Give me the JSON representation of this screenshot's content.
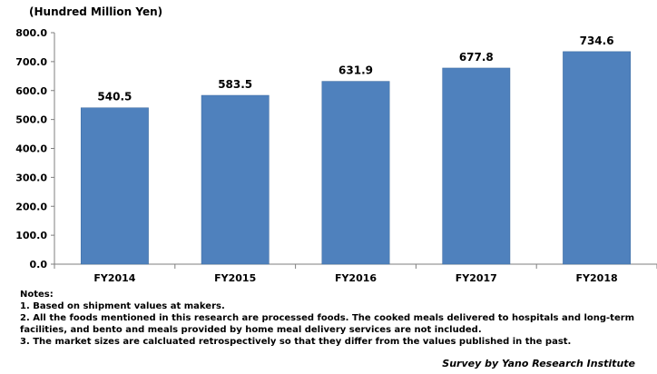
{
  "chart_data": {
    "type": "bar",
    "unit_label": "(Hundred Million Yen)",
    "categories": [
      "FY2014",
      "FY2015",
      "FY2016",
      "FY2017",
      "FY2018"
    ],
    "values": [
      540.5,
      583.5,
      631.9,
      677.8,
      734.6
    ],
    "value_labels": [
      "540.5",
      "583.5",
      "631.9",
      "677.8",
      "734.6"
    ],
    "ylim": [
      0,
      800
    ],
    "yticks": [
      0,
      100,
      200,
      300,
      400,
      500,
      600,
      700,
      800
    ],
    "ytick_labels": [
      "0.0",
      "100.0",
      "200.0",
      "300.0",
      "400.0",
      "500.0",
      "600.0",
      "700.0",
      "800.0"
    ],
    "grid": false,
    "bar_color": "#4f81bd"
  },
  "notes": {
    "heading": "Notes:",
    "items": [
      "1. Based on shipment values at makers.",
      "2. All the foods mentioned in this research are processed foods. The cooked meals delivered to hospitals and long-term facilities, and bento and meals provided by home meal delivery services are not included.",
      "3. The market sizes are calcluated retrospectively so that they differ from the values published in the past."
    ]
  },
  "credit": "Survey by Yano Research Institute"
}
